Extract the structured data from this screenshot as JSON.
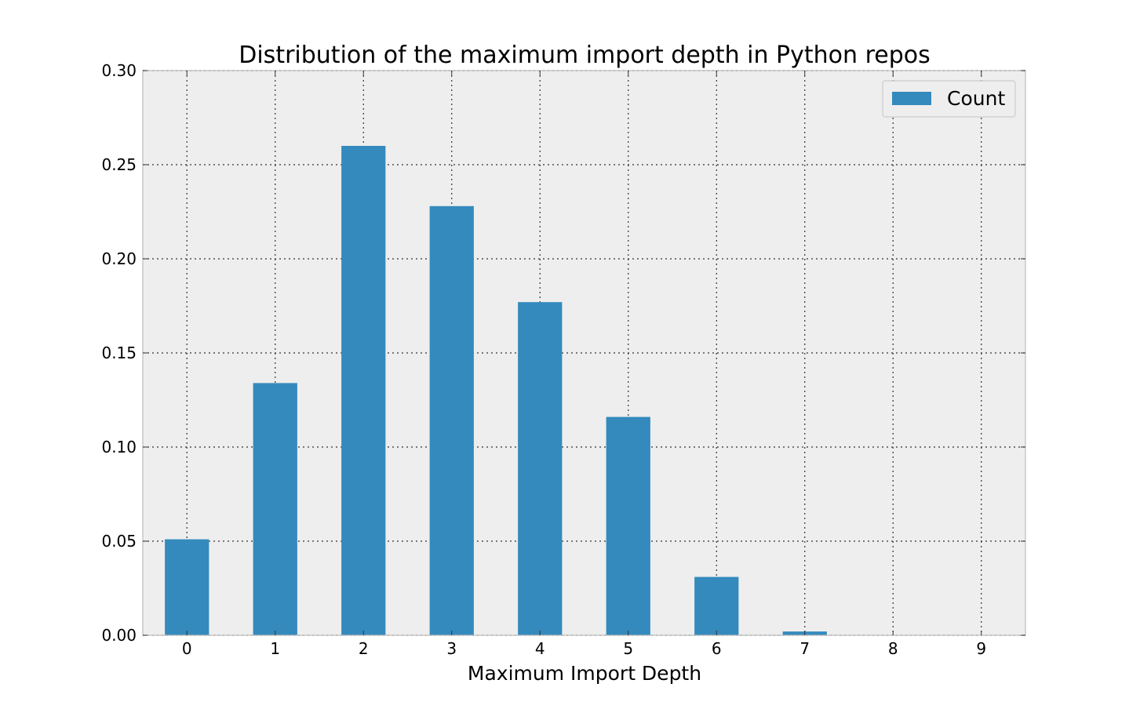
{
  "chart_data": {
    "type": "bar",
    "title": "Distribution of the maximum import depth in Python repos",
    "xlabel": "Maximum Import Depth",
    "ylabel": "",
    "categories": [
      "0",
      "1",
      "2",
      "3",
      "4",
      "5",
      "6",
      "7",
      "8",
      "9"
    ],
    "series": [
      {
        "name": "Count",
        "color": "#348abd",
        "values": [
          0.051,
          0.134,
          0.26,
          0.228,
          0.177,
          0.116,
          0.031,
          0.002,
          0.0,
          0.0
        ]
      }
    ],
    "ylim": [
      0,
      0.3
    ],
    "yticks": [
      0.0,
      0.05,
      0.1,
      0.15,
      0.2,
      0.25,
      0.3
    ],
    "ytick_labels": [
      "0.00",
      "0.05",
      "0.10",
      "0.15",
      "0.20",
      "0.25",
      "0.30"
    ],
    "grid": true,
    "legend_position": "top-right",
    "plot_background": "#eeeeee",
    "axes_edge_color": "#bcbcbc"
  }
}
